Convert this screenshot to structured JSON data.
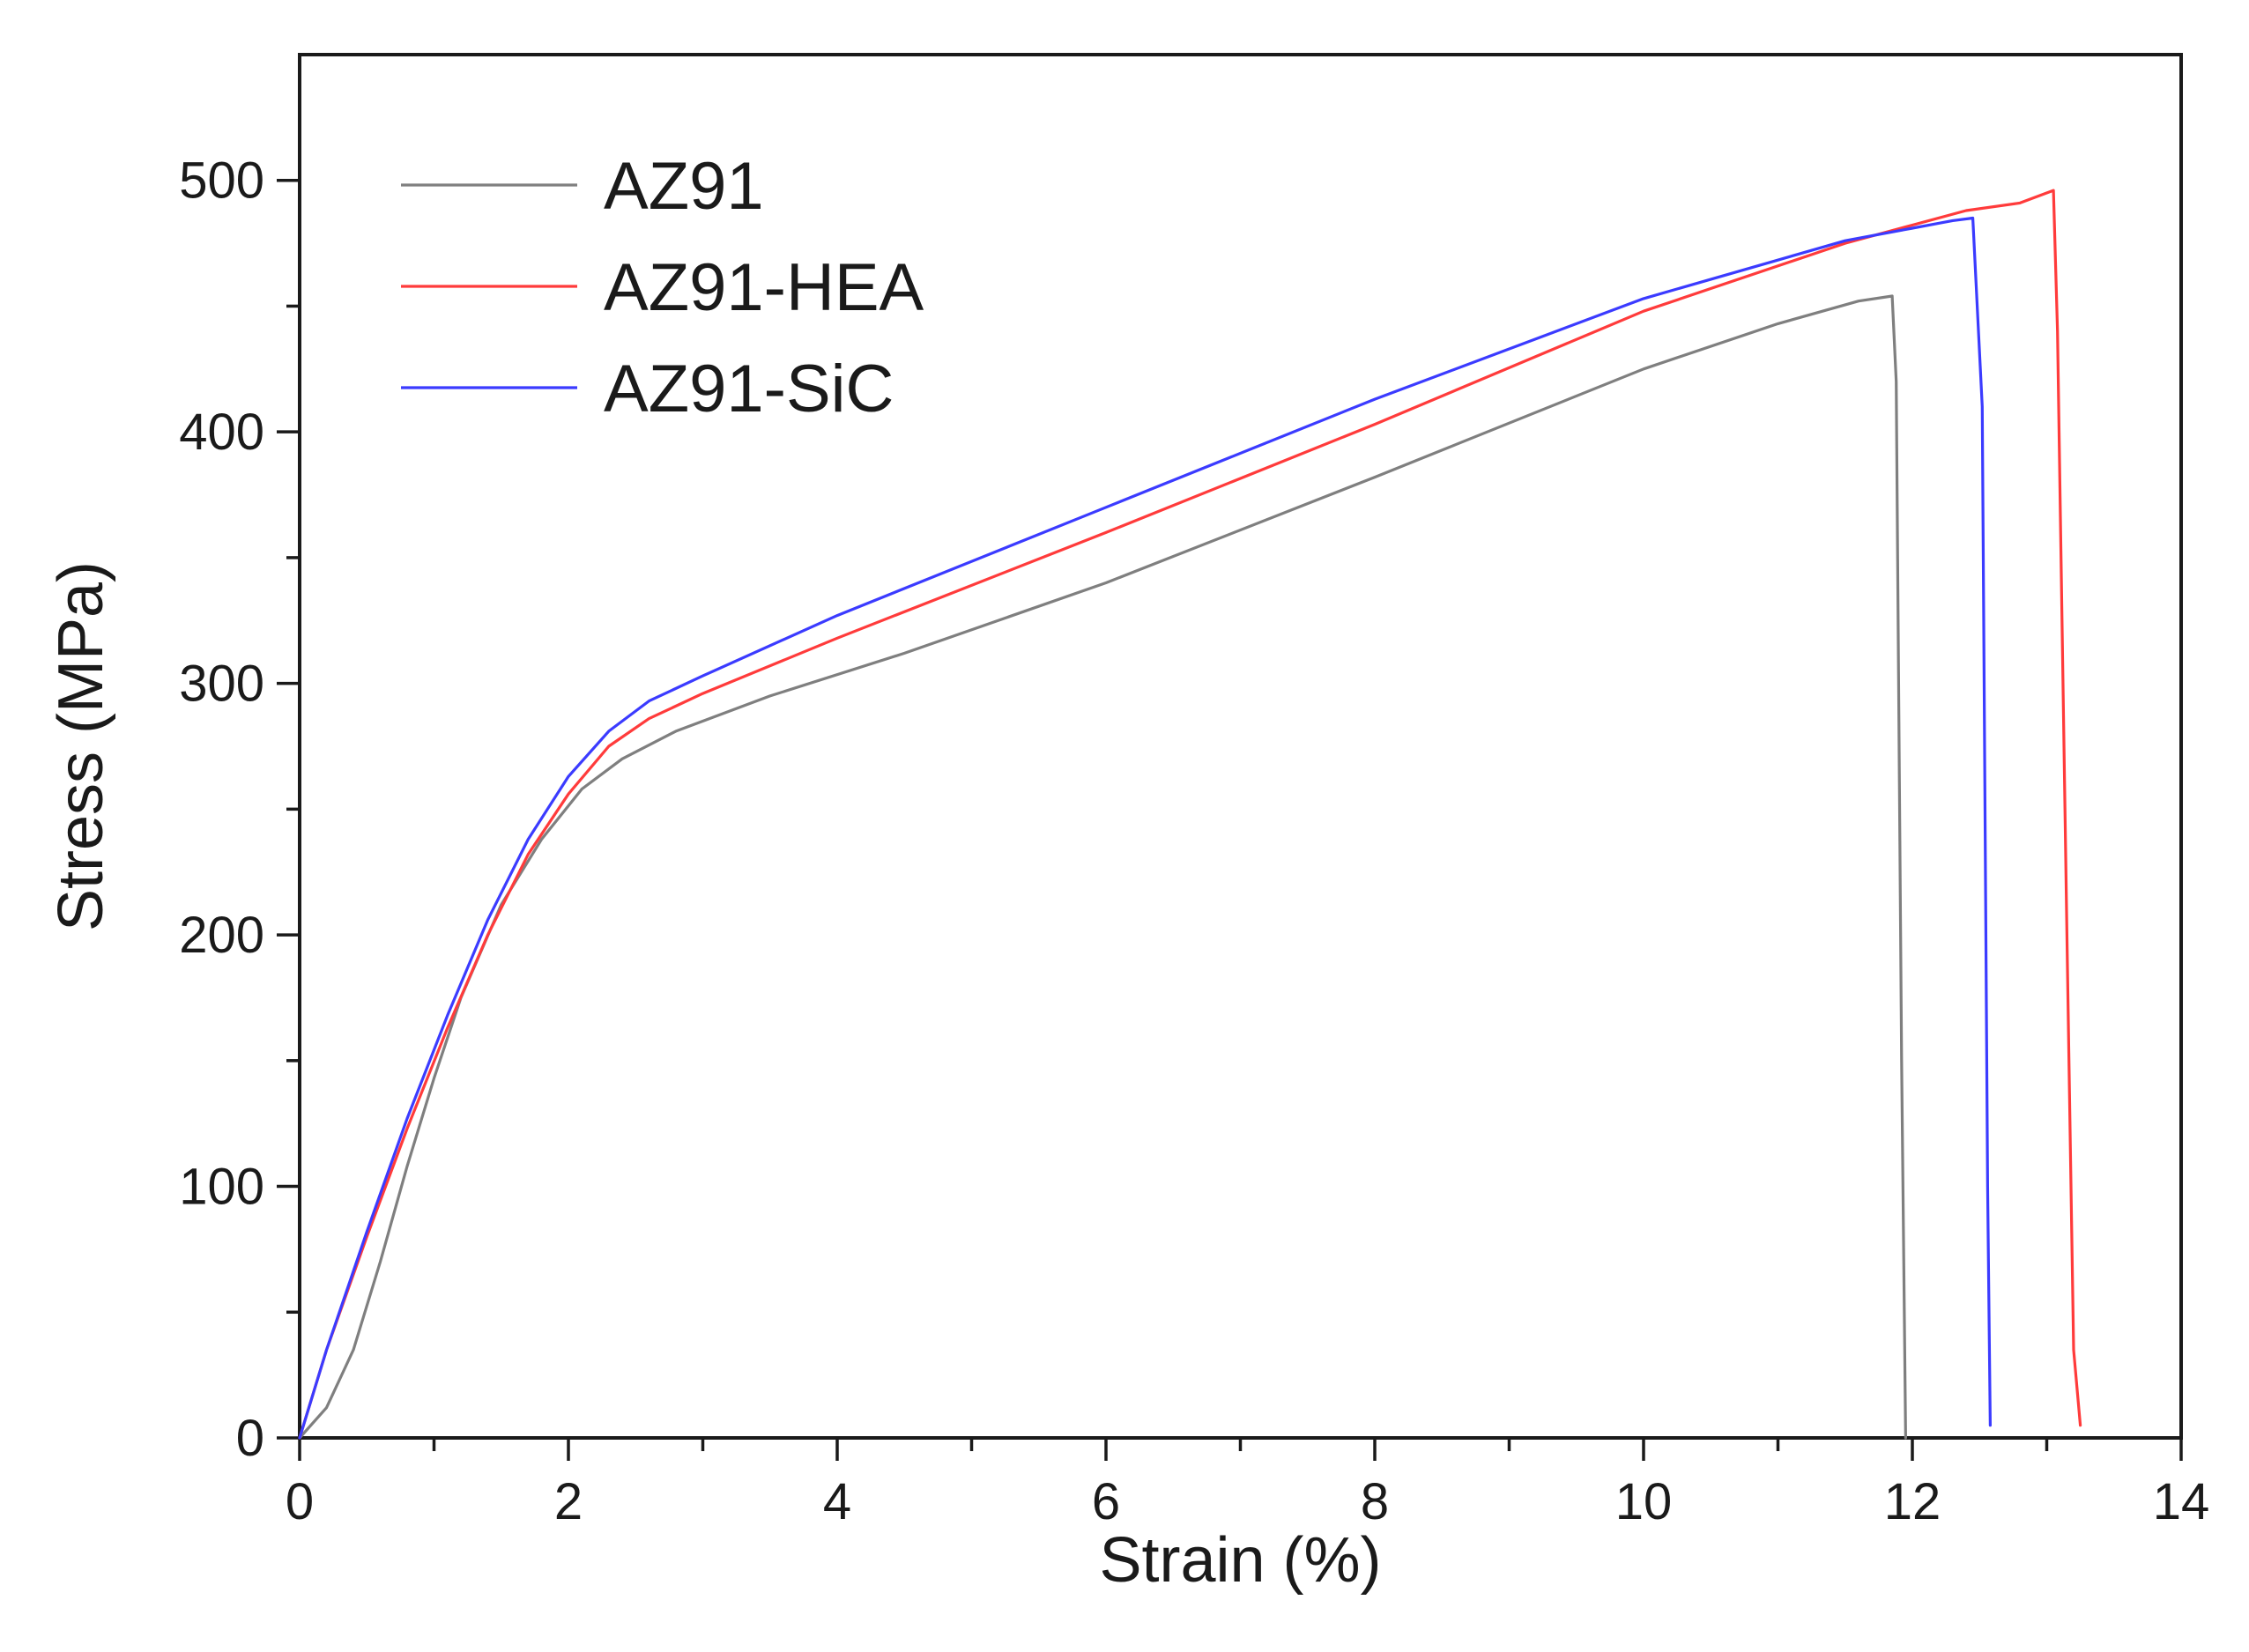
{
  "chart_data": {
    "type": "line",
    "title": "",
    "xlabel": "Strain (%)",
    "ylabel": "Stress (MPa)",
    "xlim": [
      0,
      14
    ],
    "ylim": [
      0,
      550
    ],
    "x_ticks": [
      0,
      2,
      4,
      6,
      8,
      10,
      12,
      14
    ],
    "x_ticks_minor": [
      1,
      3,
      5,
      7,
      9,
      11,
      13
    ],
    "y_ticks": [
      0,
      100,
      200,
      300,
      400,
      500
    ],
    "y_ticks_minor": [
      50,
      150,
      250,
      350,
      450
    ],
    "grid": false,
    "legend_position": "top-left",
    "series": [
      {
        "name": "AZ91",
        "color": "#7f7f7f",
        "x": [
          0,
          0.2,
          0.4,
          0.6,
          0.8,
          1.0,
          1.2,
          1.5,
          1.8,
          2.1,
          2.4,
          2.8,
          3.5,
          4.5,
          6.0,
          8.0,
          10.0,
          11.0,
          11.6,
          11.85,
          11.88,
          11.92,
          11.95
        ],
        "values": [
          0,
          12,
          35,
          70,
          108,
          143,
          175,
          212,
          238,
          258,
          270,
          281,
          295,
          312,
          340,
          382,
          425,
          443,
          452,
          454,
          420,
          150,
          0
        ]
      },
      {
        "name": "AZ91-HEA",
        "color": "#ff3b3b",
        "x": [
          0,
          0.2,
          0.5,
          0.8,
          1.1,
          1.4,
          1.7,
          2.0,
          2.3,
          2.6,
          3.0,
          4.0,
          6.0,
          8.0,
          10.0,
          11.5,
          12.4,
          12.8,
          13.05,
          13.08,
          13.15,
          13.2,
          13.25
        ],
        "values": [
          0,
          35,
          80,
          123,
          163,
          200,
          232,
          256,
          275,
          286,
          296,
          318,
          360,
          403,
          448,
          475,
          488,
          491,
          496,
          440,
          200,
          35,
          5
        ]
      },
      {
        "name": "AZ91-SiC",
        "color": "#3b3bff",
        "x": [
          0,
          0.2,
          0.5,
          0.8,
          1.1,
          1.4,
          1.7,
          2.0,
          2.3,
          2.6,
          3.0,
          4.0,
          6.0,
          8.0,
          10.0,
          11.5,
          12.0,
          12.3,
          12.45,
          12.52,
          12.56,
          12.58
        ],
        "values": [
          0,
          35,
          82,
          127,
          168,
          206,
          238,
          263,
          281,
          293,
          303,
          327,
          370,
          413,
          453,
          476,
          481,
          484,
          485,
          410,
          100,
          5
        ]
      }
    ]
  }
}
